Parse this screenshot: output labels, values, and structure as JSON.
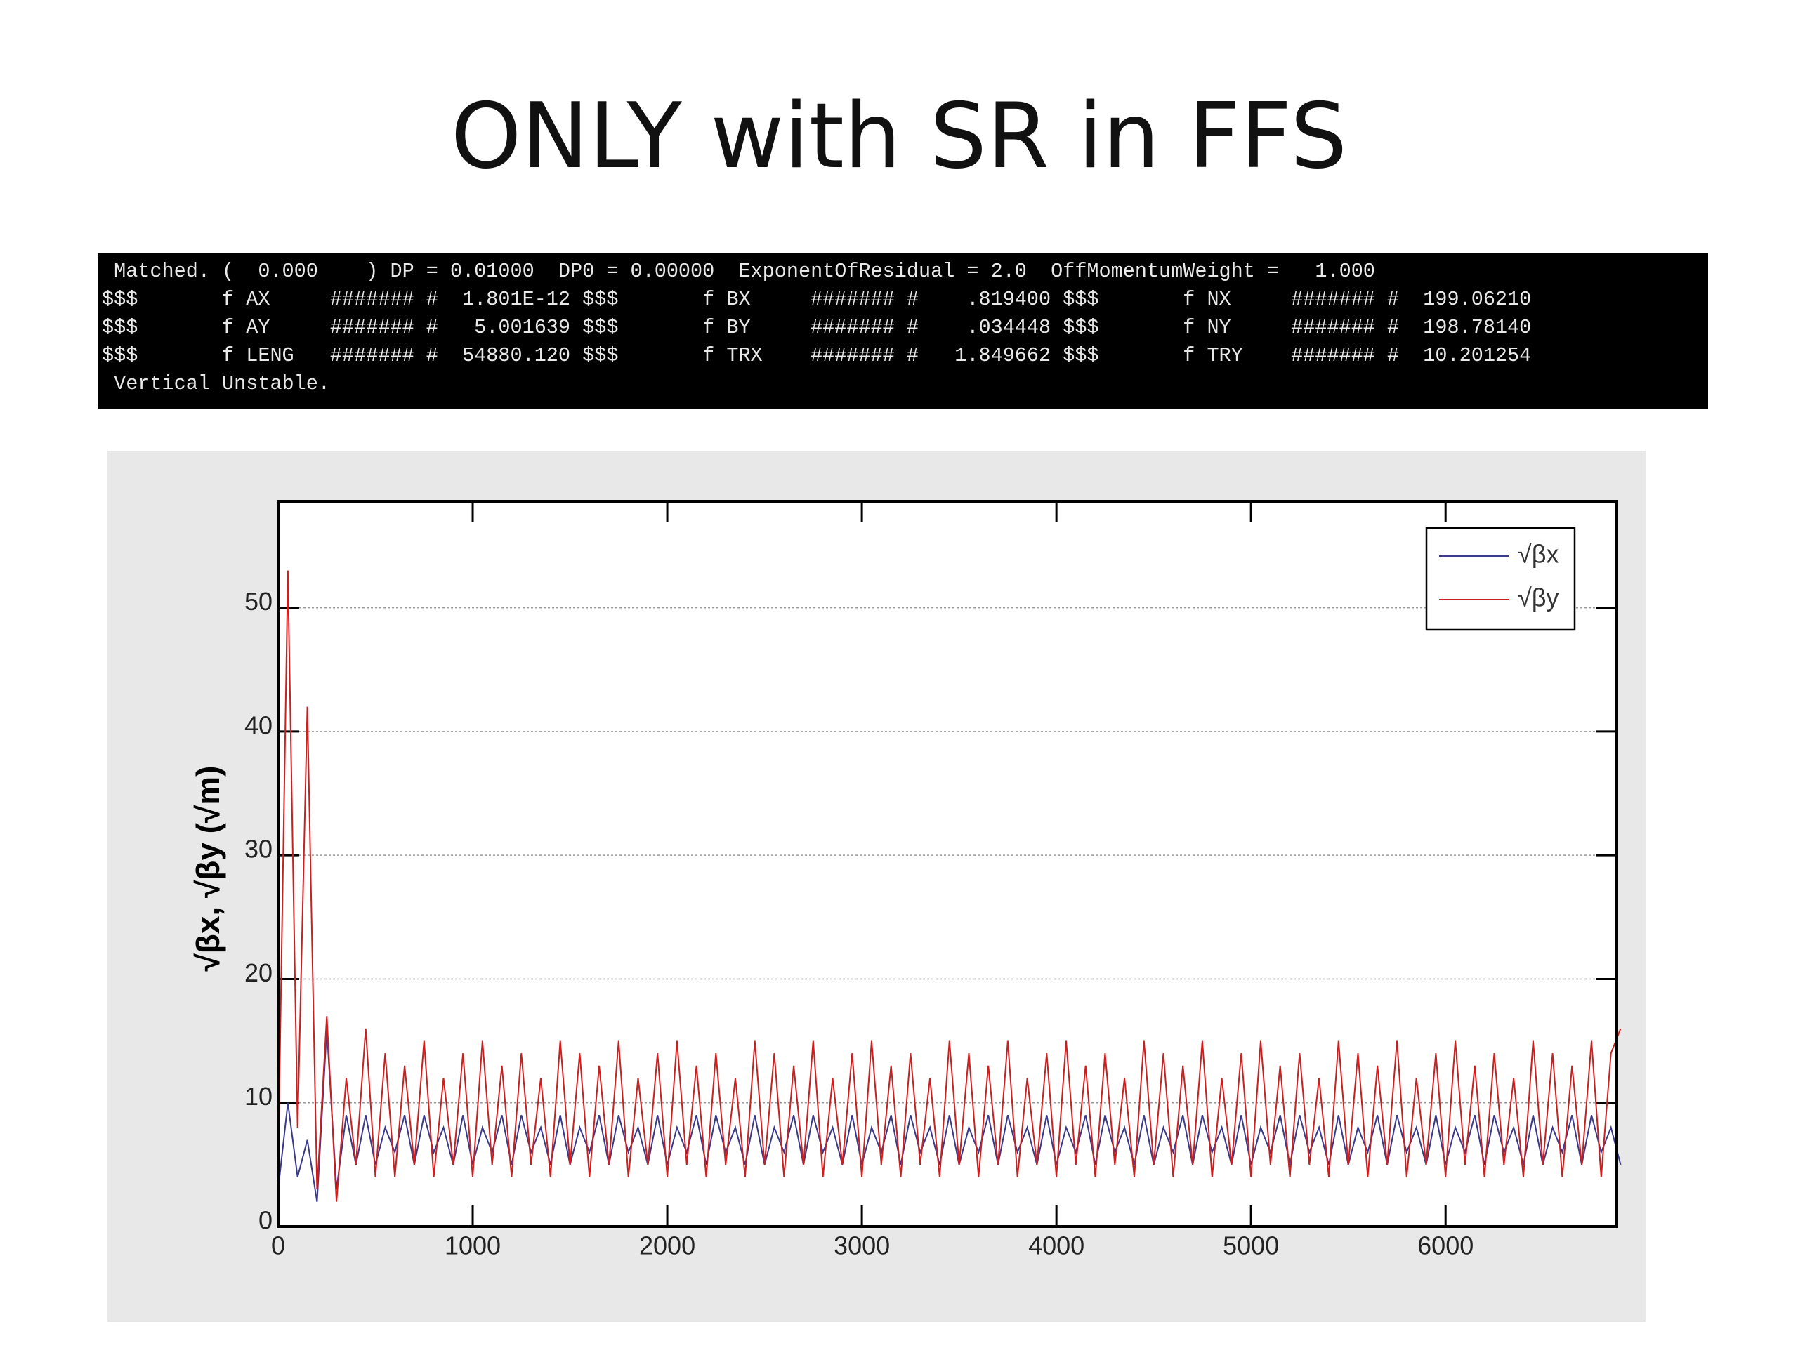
{
  "title": "ONLY with SR in FFS",
  "terminal": {
    "lines": [
      " Matched. (  0.000    ) DP = 0.01000  DP0 = 0.00000  ExponentOfResidual = 2.0  OffMomentumWeight =   1.000",
      "$$$       f AX     ####### #  1.801E-12 $$$       f BX     ####### #    .819400 $$$       f NX     ####### #  199.06210",
      "$$$       f AY     ####### #   5.001639 $$$       f BY     ####### #    .034448 $$$       f NY     ####### #  198.78140",
      "$$$       f LENG   ####### #  54880.120 $$$       f TRX    ####### #   1.849662 $$$       f TRY    ####### #  10.201254",
      " Vertical Unstable."
    ]
  },
  "chart_data": {
    "type": "line",
    "ylabel": "√βx, √βy (√m)",
    "xlim": [
      0,
      6880
    ],
    "xticks": [
      0,
      1000,
      2000,
      3000,
      4000,
      5000,
      6000
    ],
    "ylim": [
      0,
      58.6
    ],
    "yticks": [
      0,
      10,
      20,
      30,
      40,
      50
    ],
    "grid": true,
    "legend": "top-right",
    "x": [
      0,
      50,
      100,
      150,
      200,
      250,
      300,
      350,
      400,
      450,
      500,
      550,
      600,
      650,
      700,
      750,
      800,
      850,
      900,
      950,
      1000,
      1050,
      1100,
      1150,
      1200,
      1250,
      1300,
      1350,
      1400,
      1450,
      1500,
      1550,
      1600,
      1650,
      1700,
      1750,
      1800,
      1850,
      1900,
      1950,
      2000,
      2050,
      2100,
      2150,
      2200,
      2250,
      2300,
      2350,
      2400,
      2450,
      2500,
      2550,
      2600,
      2650,
      2700,
      2750,
      2800,
      2850,
      2900,
      2950,
      3000,
      3050,
      3100,
      3150,
      3200,
      3250,
      3300,
      3350,
      3400,
      3450,
      3500,
      3550,
      3600,
      3650,
      3700,
      3750,
      3800,
      3850,
      3900,
      3950,
      4000,
      4050,
      4100,
      4150,
      4200,
      4250,
      4300,
      4350,
      4400,
      4450,
      4500,
      4550,
      4600,
      4650,
      4700,
      4750,
      4800,
      4850,
      4900,
      4950,
      5000,
      5050,
      5100,
      5150,
      5200,
      5250,
      5300,
      5350,
      5400,
      5450,
      5500,
      5550,
      5600,
      5650,
      5700,
      5750,
      5800,
      5850,
      5900,
      5950,
      6000,
      6050,
      6100,
      6150,
      6200,
      6250,
      6300,
      6350,
      6400,
      6450,
      6500,
      6550,
      6600,
      6650,
      6700,
      6750,
      6800,
      6850,
      6900
    ],
    "series": [
      {
        "name": "√βx",
        "color": "#3a3a8c",
        "values": [
          3,
          10,
          4,
          7,
          2,
          16,
          3,
          9,
          5,
          9,
          5,
          8,
          6,
          9,
          5,
          9,
          6,
          8,
          5,
          9,
          5,
          8,
          6,
          9,
          5,
          9,
          6,
          8,
          5,
          9,
          5,
          8,
          6,
          9,
          5,
          9,
          6,
          8,
          5,
          9,
          5,
          8,
          6,
          9,
          5,
          9,
          6,
          8,
          5,
          9,
          5,
          8,
          6,
          9,
          5,
          9,
          6,
          8,
          5,
          9,
          5,
          8,
          6,
          9,
          5,
          9,
          6,
          8,
          5,
          9,
          5,
          8,
          6,
          9,
          5,
          9,
          6,
          8,
          5,
          9,
          5,
          8,
          6,
          9,
          5,
          9,
          6,
          8,
          5,
          9,
          5,
          8,
          6,
          9,
          5,
          9,
          6,
          8,
          5,
          9,
          5,
          8,
          6,
          9,
          5,
          9,
          6,
          8,
          5,
          9,
          5,
          8,
          6,
          9,
          5,
          9,
          6,
          8,
          5,
          9,
          5,
          8,
          6,
          9,
          5,
          9,
          6,
          8,
          5,
          9,
          5,
          8,
          6,
          9,
          5,
          9,
          6,
          8,
          5
        ]
      },
      {
        "name": "√βy",
        "color": "#cc1f1f",
        "values": [
          5,
          53,
          8,
          42,
          3,
          17,
          2,
          12,
          5,
          16,
          4,
          14,
          4,
          13,
          5,
          15,
          4,
          12,
          5,
          14,
          4,
          15,
          5,
          13,
          4,
          14,
          5,
          12,
          4,
          15,
          5,
          14,
          4,
          13,
          5,
          15,
          4,
          12,
          5,
          14,
          4,
          15,
          5,
          13,
          4,
          14,
          5,
          12,
          4,
          15,
          5,
          14,
          4,
          13,
          5,
          15,
          4,
          12,
          5,
          14,
          4,
          15,
          5,
          13,
          4,
          14,
          5,
          12,
          4,
          15,
          5,
          14,
          4,
          13,
          5,
          15,
          4,
          12,
          5,
          14,
          4,
          15,
          5,
          13,
          4,
          14,
          5,
          12,
          4,
          15,
          5,
          14,
          4,
          13,
          5,
          15,
          4,
          12,
          5,
          14,
          4,
          15,
          5,
          13,
          4,
          14,
          5,
          12,
          4,
          15,
          5,
          14,
          4,
          13,
          5,
          15,
          4,
          12,
          5,
          14,
          4,
          15,
          5,
          13,
          4,
          14,
          5,
          12,
          4,
          15,
          5,
          14,
          4,
          13,
          5,
          15,
          4,
          14,
          16
        ]
      }
    ]
  }
}
